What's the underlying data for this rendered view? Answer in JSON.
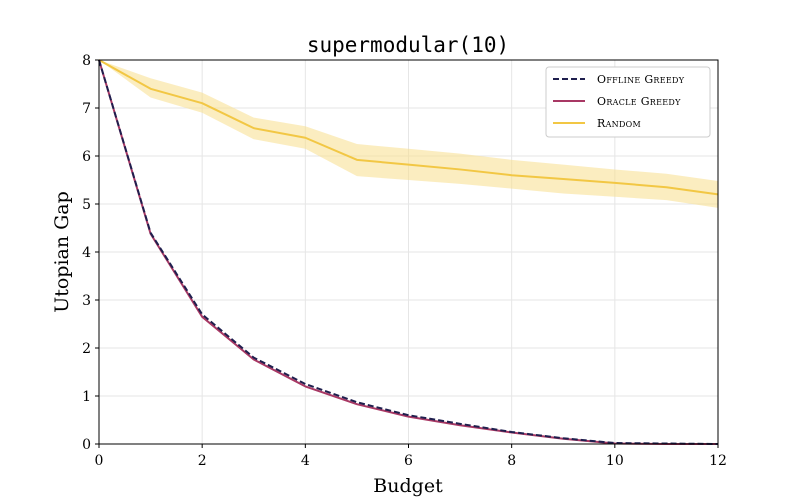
{
  "chart_data": {
    "type": "line",
    "title": "supermodular(10)",
    "xlabel": "Budget",
    "ylabel": "Utopian Gap",
    "xlim": [
      0,
      12
    ],
    "ylim": [
      0,
      8
    ],
    "xticks": [
      0,
      2,
      4,
      6,
      8,
      10,
      12
    ],
    "yticks": [
      0,
      1,
      2,
      3,
      4,
      5,
      6,
      7,
      8
    ],
    "grid": true,
    "legend_position": "top-right",
    "x": [
      0,
      1,
      2,
      3,
      4,
      5,
      6,
      7,
      8,
      9,
      10,
      11,
      12
    ],
    "series": [
      {
        "name": "Offline Greedy",
        "style": "dashed",
        "color": "#1f1f4e",
        "values": [
          8,
          4.4,
          2.7,
          1.8,
          1.25,
          0.87,
          0.6,
          0.42,
          0.25,
          0.12,
          0.02,
          0.01,
          0.0
        ]
      },
      {
        "name": "Oracle Greedy",
        "style": "solid",
        "color": "#a83864",
        "values": [
          8,
          4.38,
          2.65,
          1.76,
          1.2,
          0.83,
          0.57,
          0.39,
          0.24,
          0.11,
          0.01,
          0.0,
          0.0
        ]
      },
      {
        "name": "Random",
        "style": "solid",
        "color": "#f2c744",
        "band_color": "#f7df8c",
        "values": [
          8,
          7.4,
          7.1,
          6.58,
          6.38,
          5.92,
          5.82,
          5.72,
          5.6,
          5.52,
          5.44,
          5.35,
          5.2
        ],
        "lower": [
          8,
          7.22,
          6.9,
          6.35,
          6.15,
          5.58,
          5.5,
          5.42,
          5.32,
          5.22,
          5.15,
          5.08,
          4.92
        ],
        "upper": [
          8,
          7.62,
          7.32,
          6.8,
          6.62,
          6.25,
          6.15,
          6.05,
          5.92,
          5.82,
          5.72,
          5.63,
          5.48
        ]
      }
    ]
  }
}
